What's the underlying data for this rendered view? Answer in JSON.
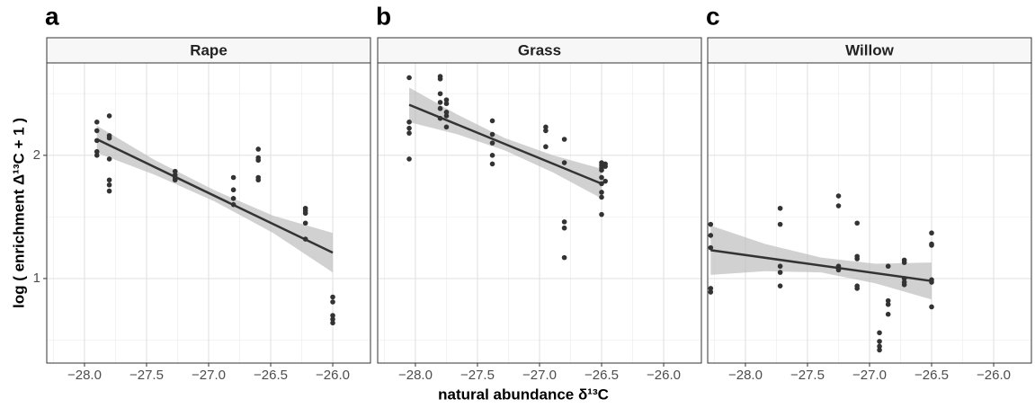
{
  "chart_data": [
    {
      "type": "scatter",
      "panel": "a",
      "title": "Rape",
      "ylabel": "log ( enrichment Δ¹³C  + 1 )",
      "x": [
        -27.9,
        -27.9,
        -27.9,
        -27.9,
        -27.9,
        -27.8,
        -27.8,
        -27.8,
        -27.8,
        -27.8,
        -27.8,
        -27.8,
        -27.27,
        -27.27,
        -27.27,
        -27.27,
        -26.8,
        -26.8,
        -26.8,
        -26.8,
        -26.6,
        -26.6,
        -26.6,
        -26.6,
        -26.6,
        -26.22,
        -26.22,
        -26.22,
        -26.22,
        -26.22,
        -26.0,
        -26.0,
        -26.0,
        -26.0,
        -26.0
      ],
      "y": [
        2.27,
        2.2,
        2.12,
        2.03,
        2.0,
        2.32,
        2.16,
        2.14,
        1.97,
        1.8,
        1.76,
        1.71,
        1.87,
        1.84,
        1.82,
        1.8,
        1.82,
        1.72,
        1.65,
        1.6,
        2.05,
        1.98,
        1.96,
        1.82,
        1.8,
        1.57,
        1.55,
        1.53,
        1.45,
        1.32,
        0.85,
        0.81,
        0.7,
        0.67,
        0.64
      ],
      "fit": {
        "x": [
          -27.9,
          -26.0
        ],
        "y": [
          2.13,
          1.21
        ]
      },
      "band": {
        "x": [
          -27.9,
          -27.43,
          -26.95,
          -26.48,
          -26.0
        ],
        "lower": [
          2.02,
          1.84,
          1.625,
          1.37,
          1.05
        ],
        "upper": [
          2.24,
          1.96,
          1.715,
          1.51,
          1.37
        ]
      },
      "xlim": [
        -28.304,
        -25.696
      ],
      "ylim": [
        0.314,
        2.75
      ],
      "xticks": [
        {
          "value": -28,
          "label": "−28.0"
        },
        {
          "value": -27.5,
          "label": "−27.5"
        },
        {
          "value": -27,
          "label": "−27.0"
        },
        {
          "value": -26.5,
          "label": "−26.5"
        },
        {
          "value": -26,
          "label": "−26.0"
        }
      ],
      "yticks": [
        1,
        2
      ],
      "xminor": [
        -28.25,
        -27.75,
        -27.25,
        -26.75,
        -26.25
      ],
      "yminor": [
        0.5,
        1.5,
        2.5
      ],
      "color": "#333333",
      "band_color": "#bdbdbd",
      "grid": true,
      "show_yticks": true
    },
    {
      "type": "scatter",
      "panel": "b",
      "title": "Grass",
      "xlabel": "natural abundance δ¹³C",
      "x": [
        -28.05,
        -28.05,
        -28.05,
        -28.05,
        -28.05,
        -27.8,
        -27.8,
        -27.8,
        -27.8,
        -27.8,
        -27.8,
        -27.75,
        -27.75,
        -27.75,
        -27.75,
        -27.75,
        -27.38,
        -27.38,
        -27.38,
        -27.38,
        -27.38,
        -26.95,
        -26.95,
        -26.95,
        -26.8,
        -26.8,
        -26.8,
        -26.8,
        -26.8,
        -26.5,
        -26.5,
        -26.5,
        -26.5,
        -26.5,
        -26.5,
        -26.5,
        -26.5,
        -26.5,
        -26.47,
        -26.47,
        -26.47
      ],
      "y": [
        2.63,
        2.27,
        2.22,
        2.18,
        1.97,
        2.64,
        2.62,
        2.5,
        2.43,
        2.38,
        2.3,
        2.45,
        2.42,
        2.35,
        2.32,
        2.23,
        2.28,
        2.17,
        2.1,
        2.0,
        1.93,
        2.23,
        2.2,
        2.07,
        2.13,
        1.94,
        1.46,
        1.41,
        1.17,
        1.94,
        1.92,
        1.9,
        1.88,
        1.82,
        1.77,
        1.7,
        1.66,
        1.52,
        1.93,
        1.91,
        1.79
      ],
      "fit": {
        "x": [
          -28.05,
          -26.5
        ],
        "y": [
          2.41,
          1.77
        ]
      },
      "band": {
        "x": [
          -28.05,
          -27.66,
          -27.28,
          -26.89,
          -26.5
        ],
        "lower": [
          2.27,
          2.17,
          2.04,
          1.86,
          1.65
        ],
        "upper": [
          2.55,
          2.33,
          2.14,
          2.0,
          1.89
        ]
      },
      "xlim": [
        -28.304,
        -25.696
      ],
      "ylim": [
        0.314,
        2.75
      ],
      "xticks": [
        {
          "value": -28,
          "label": "−28.0"
        },
        {
          "value": -27.5,
          "label": "−27.5"
        },
        {
          "value": -27,
          "label": "−27.0"
        },
        {
          "value": -26.5,
          "label": "−26.5"
        },
        {
          "value": -26,
          "label": "−26.0"
        }
      ],
      "yticks": [
        1,
        2
      ],
      "xminor": [
        -28.25,
        -27.75,
        -27.25,
        -26.75,
        -26.25
      ],
      "yminor": [
        0.5,
        1.5,
        2.5
      ],
      "color": "#333333",
      "band_color": "#bdbdbd",
      "grid": true,
      "show_yticks": false
    },
    {
      "type": "scatter",
      "panel": "c",
      "title": "Willow",
      "x": [
        -28.28,
        -28.28,
        -28.28,
        -28.28,
        -28.28,
        -27.72,
        -27.72,
        -27.72,
        -27.72,
        -27.72,
        -27.25,
        -27.25,
        -27.25,
        -27.25,
        -27.25,
        -27.1,
        -27.1,
        -27.1,
        -27.1,
        -27.1,
        -26.92,
        -26.92,
        -26.92,
        -26.92,
        -26.85,
        -26.85,
        -26.85,
        -26.85,
        -26.72,
        -26.72,
        -26.72,
        -26.72,
        -26.72,
        -26.5,
        -26.5,
        -26.5,
        -26.5,
        -26.5,
        -26.5
      ],
      "y": [
        1.44,
        1.35,
        1.25,
        0.92,
        0.89,
        1.57,
        1.44,
        1.1,
        1.05,
        0.94,
        1.67,
        1.59,
        1.1,
        1.08,
        1.07,
        1.45,
        1.18,
        1.16,
        0.94,
        0.92,
        0.56,
        0.49,
        0.45,
        0.42,
        1.1,
        0.82,
        0.79,
        0.71,
        1.15,
        1.13,
        1.0,
        0.97,
        0.95,
        1.37,
        1.28,
        1.27,
        0.99,
        0.97,
        0.77
      ],
      "fit": {
        "x": [
          -28.28,
          -26.5
        ],
        "y": [
          1.23,
          0.98
        ]
      },
      "band": {
        "x": [
          -28.28,
          -27.84,
          -27.39,
          -26.95,
          -26.5
        ],
        "lower": [
          1.03,
          1.06,
          1.05,
          0.96,
          0.83
        ],
        "upper": [
          1.43,
          1.28,
          1.17,
          1.12,
          1.13
        ]
      },
      "xlim": [
        -28.304,
        -25.696
      ],
      "ylim": [
        0.314,
        2.75
      ],
      "xticks": [
        {
          "value": -28,
          "label": "−28.0"
        },
        {
          "value": -27.5,
          "label": "−27.5"
        },
        {
          "value": -27,
          "label": "−27.0"
        },
        {
          "value": -26.5,
          "label": "−26.5"
        },
        {
          "value": -26,
          "label": "−26.0"
        }
      ],
      "yticks": [
        1,
        2
      ],
      "xminor": [
        -28.25,
        -27.75,
        -27.25,
        -26.75,
        -26.25
      ],
      "yminor": [
        0.5,
        1.5,
        2.5
      ],
      "color": "#333333",
      "band_color": "#bdbdbd",
      "grid": true,
      "show_yticks": false
    }
  ]
}
